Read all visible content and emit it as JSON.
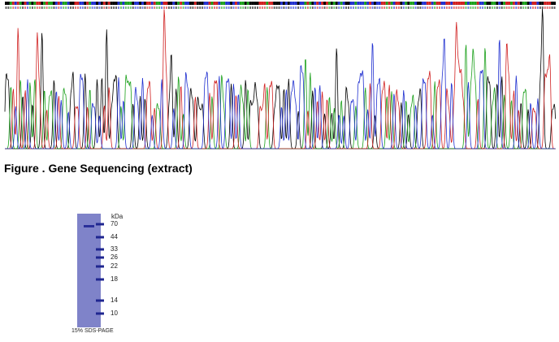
{
  "figure_caption": "Figure . Gene Sequencing (extract)",
  "gel": {
    "unit_label": "kDa",
    "markers": [
      "70",
      "44",
      "33",
      "26",
      "22",
      "18",
      "14",
      "10"
    ],
    "caption": "15% SDS-PAGE"
  }
}
